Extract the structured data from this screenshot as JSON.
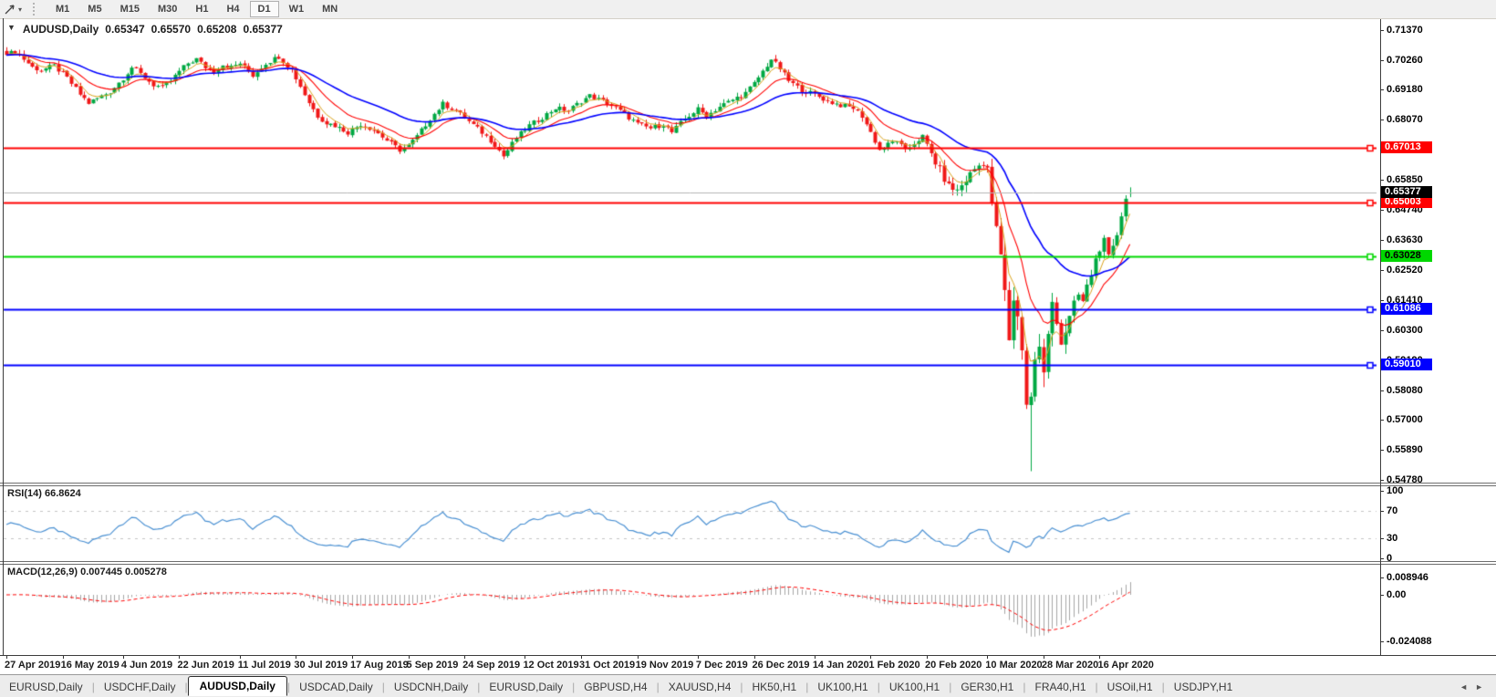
{
  "window": {
    "collapse_icon": "▼"
  },
  "toolbar": {
    "dropdown_caret": "▾",
    "timeframes": [
      "M1",
      "M5",
      "M15",
      "M30",
      "H1",
      "H4",
      "D1",
      "W1",
      "MN"
    ],
    "active_timeframe": "D1"
  },
  "quote_line": {
    "symbol": "AUDUSD,Daily",
    "open": "0.65347",
    "high": "0.65570",
    "low": "0.65208",
    "close": "0.65377"
  },
  "colors": {
    "bull": "#00A843",
    "bear": "#F01818",
    "ma_fast": "#D9A21B",
    "ma_mid": "#FF0000",
    "ma_slow": "#0000FF",
    "level_red": "#FF0000",
    "level_green": "#00D800",
    "level_blue": "#0000FF",
    "current_line": "#B4B4B4",
    "current_badge_bg": "#000000",
    "rsi_line": "#4A90D2",
    "rsi_guide": "#C4C4C4",
    "macd_bar": "#A6A6A6",
    "macd_signal": "#FF0000"
  },
  "price_axis": {
    "ticks": [
      "0.71370",
      "0.70260",
      "0.69180",
      "0.68070",
      "0.66960",
      "0.65850",
      "0.64740",
      "0.63630",
      "0.62520",
      "0.61410",
      "0.60300",
      "0.59190",
      "0.58080",
      "0.57000",
      "0.55890",
      "0.54780"
    ]
  },
  "levels": [
    {
      "price": 0.67013,
      "label": "0.67013",
      "color": "red",
      "text_color": "#FFFFFF"
    },
    {
      "price": 0.65003,
      "label": "0.65003",
      "color": "red",
      "text_color": "#FFFFFF"
    },
    {
      "price": 0.63028,
      "label": "0.63028",
      "color": "green",
      "text_color": "#000000"
    },
    {
      "price": 0.61086,
      "label": "0.61086",
      "color": "blue",
      "text_color": "#FFFFFF"
    },
    {
      "price": 0.5901,
      "label": "0.59010",
      "color": "blue",
      "text_color": "#FFFFFF"
    }
  ],
  "current_price": {
    "value": 0.65377,
    "label": "0.65377"
  },
  "rsi_panel": {
    "label": "RSI(14) 66.8624",
    "ticks": [
      {
        "v": 100,
        "label": "100"
      },
      {
        "v": 70,
        "label": "70"
      },
      {
        "v": 30,
        "label": "30"
      },
      {
        "v": 0,
        "label": "0"
      }
    ],
    "guides": [
      70,
      30
    ]
  },
  "macd_panel": {
    "label": "MACD(12,26,9) 0.007445 0.005278",
    "ticks": [
      {
        "v": 0.008946,
        "label": "0.008946"
      },
      {
        "v": 0,
        "label": "0.00"
      },
      {
        "v": -0.024088,
        "label": "-0.024088"
      }
    ]
  },
  "date_axis": [
    {
      "text": "27 Apr 2019",
      "i": 0
    },
    {
      "text": "16 May 2019",
      "i": 13
    },
    {
      "text": "4 Jun 2019",
      "i": 27
    },
    {
      "text": "22 Jun 2019",
      "i": 40
    },
    {
      "text": "11 Jul 2019",
      "i": 54
    },
    {
      "text": "30 Jul 2019",
      "i": 67
    },
    {
      "text": "17 Aug 2019",
      "i": 80
    },
    {
      "text": "5 Sep 2019",
      "i": 93
    },
    {
      "text": "24 Sep 2019",
      "i": 106
    },
    {
      "text": "12 Oct 2019",
      "i": 120
    },
    {
      "text": "31 Oct 2019",
      "i": 133
    },
    {
      "text": "19 Nov 2019",
      "i": 146
    },
    {
      "text": "7 Dec 2019",
      "i": 160
    },
    {
      "text": "26 Dec 2019",
      "i": 173
    },
    {
      "text": "14 Jan 2020",
      "i": 187
    },
    {
      "text": "1 Feb 2020",
      "i": 200
    },
    {
      "text": "20 Feb 2020",
      "i": 213
    },
    {
      "text": "10 Mar 2020",
      "i": 227
    },
    {
      "text": "28 Mar 2020",
      "i": 240
    },
    {
      "text": "16 Apr 2020",
      "i": 253
    }
  ],
  "tab_bar": {
    "tabs": [
      "EURUSD,Daily",
      "USDCHF,Daily",
      "AUDUSD,Daily",
      "USDCAD,Daily",
      "USDCNH,Daily",
      "EURUSD,Daily",
      "GBPUSD,H4",
      "XAUUSD,H4",
      "HK50,H1",
      "UK100,H1",
      "UK100,H1",
      "GER30,H1",
      "FRA40,H1",
      "USOil,H1",
      "USDJPY,H1"
    ],
    "active_index": 2,
    "nav_left": "◄",
    "nav_right": "►"
  },
  "chart_data": [
    {
      "type": "candlestick",
      "title": "AUDUSD,Daily",
      "n_bars": 261,
      "y_range": [
        0.5478,
        0.7137
      ],
      "ohlc_current": {
        "open": 0.65347,
        "high": 0.6557,
        "low": 0.65208,
        "close": 0.65377
      },
      "special_wicks": [
        {
          "i": 237,
          "low": 0.551
        }
      ],
      "moving_averages": [
        {
          "name": "EMA(5)",
          "color_key": "ma_fast"
        },
        {
          "name": "EMA(13)",
          "color_key": "ma_mid"
        },
        {
          "name": "EMA(34)",
          "color_key": "ma_slow"
        }
      ],
      "close_anchors": [
        [
          0,
          0.7045
        ],
        [
          2,
          0.706
        ],
        [
          4,
          0.703
        ],
        [
          6,
          0.7
        ],
        [
          8,
          0.699
        ],
        [
          11,
          0.7005
        ],
        [
          14,
          0.696
        ],
        [
          17,
          0.69
        ],
        [
          19,
          0.6868
        ],
        [
          21,
          0.6885
        ],
        [
          24,
          0.691
        ],
        [
          27,
          0.696
        ],
        [
          29,
          0.7
        ],
        [
          31,
          0.6975
        ],
        [
          34,
          0.6935
        ],
        [
          36,
          0.6925
        ],
        [
          38,
          0.695
        ],
        [
          40,
          0.6985
        ],
        [
          42,
          0.7015
        ],
        [
          44,
          0.703
        ],
        [
          46,
          0.7
        ],
        [
          48,
          0.6985
        ],
        [
          50,
          0.701
        ],
        [
          52,
          0.7
        ],
        [
          54,
          0.7015
        ],
        [
          57,
          0.697
        ],
        [
          60,
          0.7015
        ],
        [
          63,
          0.704
        ],
        [
          66,
          0.699
        ],
        [
          68,
          0.693
        ],
        [
          70,
          0.687
        ],
        [
          72,
          0.682
        ],
        [
          74,
          0.6795
        ],
        [
          76,
          0.6785
        ],
        [
          79,
          0.676
        ],
        [
          82,
          0.679
        ],
        [
          85,
          0.677
        ],
        [
          88,
          0.673
        ],
        [
          91,
          0.6695
        ],
        [
          93,
          0.671
        ],
        [
          95,
          0.6745
        ],
        [
          98,
          0.681
        ],
        [
          101,
          0.6865
        ],
        [
          104,
          0.684
        ],
        [
          107,
          0.68
        ],
        [
          110,
          0.676
        ],
        [
          113,
          0.6715
        ],
        [
          115,
          0.6672
        ],
        [
          118,
          0.674
        ],
        [
          121,
          0.6785
        ],
        [
          124,
          0.6815
        ],
        [
          127,
          0.685
        ],
        [
          130,
          0.684
        ],
        [
          133,
          0.6875
        ],
        [
          135,
          0.6895
        ],
        [
          138,
          0.6875
        ],
        [
          141,
          0.685
        ],
        [
          144,
          0.6815
        ],
        [
          146,
          0.679
        ],
        [
          149,
          0.6775
        ],
        [
          152,
          0.679
        ],
        [
          154,
          0.676
        ],
        [
          157,
          0.681
        ],
        [
          160,
          0.6845
        ],
        [
          162,
          0.682
        ],
        [
          165,
          0.6855
        ],
        [
          168,
          0.688
        ],
        [
          171,
          0.6905
        ],
        [
          173,
          0.694
        ],
        [
          175,
          0.6985
        ],
        [
          177,
          0.703
        ],
        [
          179,
          0.6995
        ],
        [
          181,
          0.695
        ],
        [
          184,
          0.6915
        ],
        [
          187,
          0.69
        ],
        [
          190,
          0.6875
        ],
        [
          193,
          0.686
        ],
        [
          196,
          0.685
        ],
        [
          198,
          0.682
        ],
        [
          200,
          0.676
        ],
        [
          202,
          0.6695
        ],
        [
          204,
          0.6715
        ],
        [
          206,
          0.673
        ],
        [
          208,
          0.669
        ],
        [
          210,
          0.672
        ],
        [
          212,
          0.6745
        ],
        [
          214,
          0.668
        ],
        [
          216,
          0.662
        ],
        [
          218,
          0.656
        ],
        [
          220,
          0.6545
        ],
        [
          222,
          0.6585
        ],
        [
          224,
          0.6625
        ],
        [
          226,
          0.665
        ],
        [
          227,
          0.663
        ],
        [
          228,
          0.648
        ],
        [
          229,
          0.642
        ],
        [
          230,
          0.629
        ],
        [
          231,
          0.6175
        ],
        [
          232,
          0.598
        ],
        [
          233,
          0.6145
        ],
        [
          234,
          0.609
        ],
        [
          235,
          0.595
        ],
        [
          236,
          0.577
        ],
        [
          237,
          0.579
        ],
        [
          238,
          0.5915
        ],
        [
          239,
          0.5975
        ],
        [
          240,
          0.5865
        ],
        [
          241,
          0.6005
        ],
        [
          242,
          0.6135
        ],
        [
          243,
          0.6075
        ],
        [
          244,
          0.5985
        ],
        [
          245,
          0.603
        ],
        [
          246,
          0.6075
        ],
        [
          247,
          0.6125
        ],
        [
          248,
          0.616
        ],
        [
          249,
          0.6135
        ],
        [
          250,
          0.619
        ],
        [
          251,
          0.6235
        ],
        [
          252,
          0.629
        ],
        [
          253,
          0.6335
        ],
        [
          254,
          0.6355
        ],
        [
          255,
          0.6295
        ],
        [
          256,
          0.633
        ],
        [
          257,
          0.6385
        ],
        [
          258,
          0.645
        ],
        [
          259,
          0.6515
        ],
        [
          260,
          0.65377
        ]
      ]
    },
    {
      "type": "line",
      "title": "RSI(14)",
      "current": 66.8624,
      "range": [
        0,
        100
      ],
      "guides": [
        30,
        70
      ],
      "derived_from": "close_anchors of panel 0"
    },
    {
      "type": "bar",
      "title": "MACD(12,26,9)",
      "macd_current": 0.007445,
      "signal_current": 0.005278,
      "range": [
        -0.024088,
        0.008946
      ],
      "derived_from": "close_anchors of panel 0"
    }
  ]
}
